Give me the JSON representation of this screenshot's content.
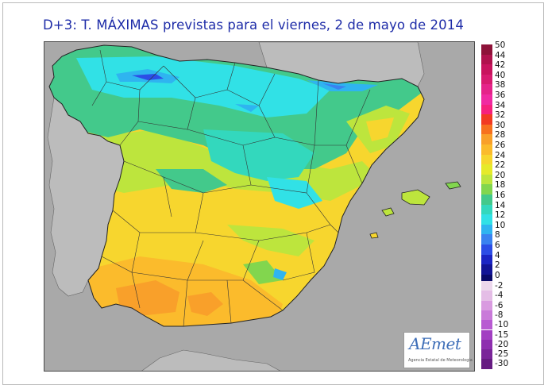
{
  "title": "D+3: T. MÁXIMAS previstas para el viernes, 2 de mayo de 2014",
  "legend": {
    "entries": [
      {
        "label": "50",
        "color": "#8e1239"
      },
      {
        "label": "44",
        "color": "#b0124d"
      },
      {
        "label": "42",
        "color": "#c8145e"
      },
      {
        "label": "40",
        "color": "#d81b70"
      },
      {
        "label": "38",
        "color": "#e5238a"
      },
      {
        "label": "36",
        "color": "#f02aa2"
      },
      {
        "label": "34",
        "color": "#f6217d"
      },
      {
        "label": "32",
        "color": "#f23a22"
      },
      {
        "label": "30",
        "color": "#f7711e"
      },
      {
        "label": "28",
        "color": "#f9a02a"
      },
      {
        "label": "26",
        "color": "#fbbb2c"
      },
      {
        "label": "24",
        "color": "#f7d62e"
      },
      {
        "label": "22",
        "color": "#e6ea2a"
      },
      {
        "label": "20",
        "color": "#bde53d"
      },
      {
        "label": "18",
        "color": "#82d64e"
      },
      {
        "label": "16",
        "color": "#43c98b"
      },
      {
        "label": "14",
        "color": "#33d8bd"
      },
      {
        "label": "12",
        "color": "#31e1e6"
      },
      {
        "label": "10",
        "color": "#2fb4f0"
      },
      {
        "label": "8",
        "color": "#3a82f0"
      },
      {
        "label": "6",
        "color": "#2c4de6"
      },
      {
        "label": "4",
        "color": "#1b25c4"
      },
      {
        "label": "2",
        "color": "#121496"
      },
      {
        "label": "0",
        "color": "#0a0a6a"
      }
    ],
    "negative_entries": [
      {
        "label": "-2",
        "color": "#ecd7ec"
      },
      {
        "label": "-4",
        "color": "#e4bde6"
      },
      {
        "label": "-6",
        "color": "#d99be0"
      },
      {
        "label": "-8",
        "color": "#c97ad9"
      },
      {
        "label": "-10",
        "color": "#b85ad2"
      },
      {
        "label": "-15",
        "color": "#a23fc2"
      },
      {
        "label": "-20",
        "color": "#8e2faf"
      },
      {
        "label": "-25",
        "color": "#7a2599"
      },
      {
        "label": "-30",
        "color": "#661c82"
      }
    ]
  },
  "logo": {
    "wordmark": "AEmet",
    "subtitle": "Agencia Estatal de Meteorología"
  },
  "colors": {
    "sea": "#a9a9a9",
    "title": "#1e2ca8"
  }
}
